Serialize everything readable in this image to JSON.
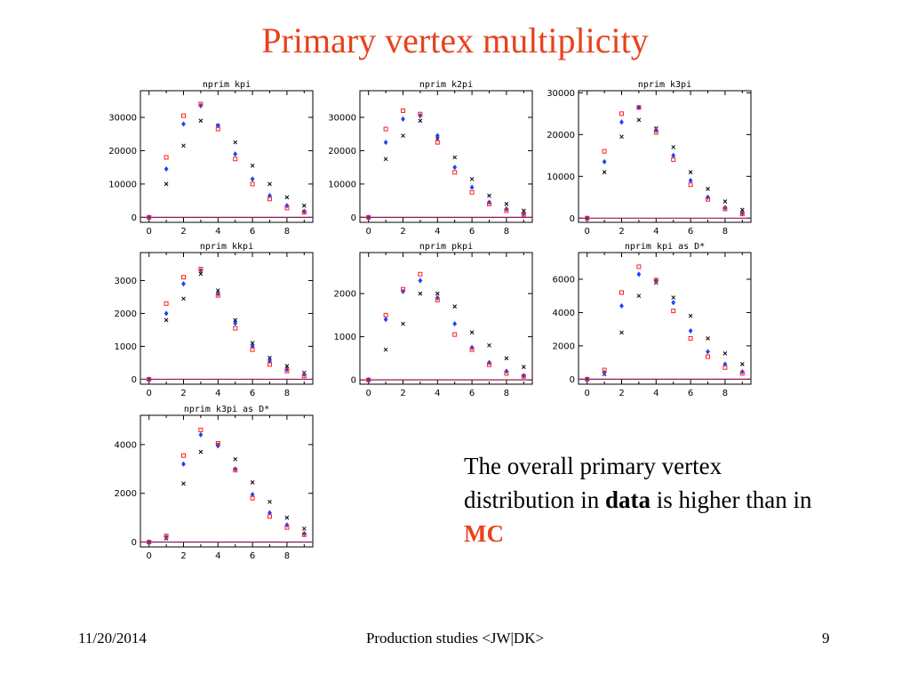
{
  "slide": {
    "title": "Primary vertex multiplicity",
    "note": {
      "part1": "The overall primary vertex distribution in ",
      "bold": "data",
      "part2": " is higher than in ",
      "mc": "MC"
    },
    "footer": {
      "date": "11/20/2014",
      "center": "Production studies <JW|DK>",
      "page": "9"
    }
  },
  "colors": {
    "title": "#e8421c",
    "zero_line": "#8b1a5a",
    "black_series": "#000000",
    "blue_series": "#1f3fff",
    "red_series": "#ff2020"
  },
  "chart_data": [
    {
      "type": "scatter",
      "title": "nprim kpi",
      "xlim": [
        -0.5,
        9.5
      ],
      "ylim": [
        -1500,
        38000
      ],
      "xticks": [
        0,
        2,
        4,
        6,
        8
      ],
      "yticks": [
        0,
        10000,
        20000,
        30000
      ],
      "x": [
        0,
        1,
        2,
        3,
        4,
        5,
        6,
        7,
        8,
        9
      ],
      "series": [
        {
          "marker": "x",
          "color": "black",
          "values": [
            0,
            10000,
            21500,
            29000,
            27500,
            22500,
            15500,
            10000,
            6000,
            3500
          ]
        },
        {
          "marker": "diamond",
          "color": "blue",
          "values": [
            0,
            14500,
            28000,
            33500,
            27500,
            19000,
            11500,
            6500,
            3500,
            1800
          ]
        },
        {
          "marker": "square",
          "color": "red",
          "values": [
            0,
            18000,
            30500,
            34000,
            26500,
            17500,
            10000,
            5500,
            2800,
            1500
          ]
        }
      ]
    },
    {
      "type": "scatter",
      "title": "nprim k2pi",
      "xlim": [
        -0.5,
        9.5
      ],
      "ylim": [
        -1500,
        38000
      ],
      "xticks": [
        0,
        2,
        4,
        6,
        8
      ],
      "yticks": [
        0,
        10000,
        20000,
        30000
      ],
      "x": [
        0,
        1,
        2,
        3,
        4,
        5,
        6,
        7,
        8,
        9
      ],
      "series": [
        {
          "marker": "x",
          "color": "black",
          "values": [
            0,
            17500,
            24500,
            29000,
            23500,
            18000,
            11500,
            6500,
            4000,
            2000
          ]
        },
        {
          "marker": "diamond",
          "color": "blue",
          "values": [
            0,
            22500,
            29500,
            30500,
            24500,
            15000,
            9000,
            4500,
            2500,
            1200
          ]
        },
        {
          "marker": "square",
          "color": "red",
          "values": [
            0,
            26500,
            32000,
            31000,
            22500,
            13500,
            7500,
            4000,
            2000,
            900
          ]
        }
      ]
    },
    {
      "type": "scatter",
      "title": "nprim k3pi",
      "xlim": [
        -0.5,
        9.5
      ],
      "ylim": [
        -1000,
        30500
      ],
      "xticks": [
        0,
        2,
        4,
        6,
        8
      ],
      "yticks": [
        0,
        10000,
        20000,
        30000
      ],
      "x": [
        0,
        1,
        2,
        3,
        4,
        5,
        6,
        7,
        8,
        9
      ],
      "series": [
        {
          "marker": "x",
          "color": "black",
          "values": [
            0,
            11000,
            19500,
            23500,
            21500,
            17000,
            11000,
            7000,
            4000,
            2000
          ]
        },
        {
          "marker": "diamond",
          "color": "blue",
          "values": [
            0,
            13500,
            23000,
            26500,
            21000,
            15000,
            9000,
            5000,
            2500,
            1200
          ]
        },
        {
          "marker": "square",
          "color": "red",
          "values": [
            0,
            16000,
            25000,
            26500,
            20500,
            14000,
            8000,
            4500,
            2200,
            1000
          ]
        }
      ]
    },
    {
      "type": "scatter",
      "title": "nprim kkpi",
      "xlim": [
        -0.5,
        9.5
      ],
      "ylim": [
        -150,
        3850
      ],
      "xticks": [
        0,
        2,
        4,
        6,
        8
      ],
      "yticks": [
        0,
        1000,
        2000,
        3000
      ],
      "x": [
        0,
        1,
        2,
        3,
        4,
        5,
        6,
        7,
        8,
        9
      ],
      "series": [
        {
          "marker": "x",
          "color": "black",
          "values": [
            0,
            1800,
            2450,
            3200,
            2700,
            1800,
            1100,
            650,
            400,
            200
          ]
        },
        {
          "marker": "diamond",
          "color": "blue",
          "values": [
            0,
            2000,
            2900,
            3300,
            2600,
            1700,
            1000,
            550,
            300,
            150
          ]
        },
        {
          "marker": "square",
          "color": "red",
          "values": [
            0,
            2300,
            3100,
            3350,
            2550,
            1550,
            900,
            450,
            250,
            100
          ]
        }
      ]
    },
    {
      "type": "scatter",
      "title": "nprim pkpi",
      "xlim": [
        -0.5,
        9.5
      ],
      "ylim": [
        -100,
        2950
      ],
      "xticks": [
        0,
        2,
        4,
        6,
        8
      ],
      "yticks": [
        0,
        1000,
        2000
      ],
      "x": [
        0,
        1,
        2,
        3,
        4,
        5,
        6,
        7,
        8,
        9
      ],
      "series": [
        {
          "marker": "x",
          "color": "black",
          "values": [
            0,
            700,
            1300,
            2000,
            2000,
            1700,
            1100,
            800,
            500,
            300
          ]
        },
        {
          "marker": "diamond",
          "color": "blue",
          "values": [
            0,
            1400,
            2050,
            2300,
            1900,
            1300,
            750,
            400,
            200,
            100
          ]
        },
        {
          "marker": "square",
          "color": "red",
          "values": [
            0,
            1500,
            2100,
            2450,
            1850,
            1050,
            700,
            350,
            150,
            80
          ]
        }
      ]
    },
    {
      "type": "scatter",
      "title": "nprim kpi as D*",
      "xlim": [
        -0.5,
        9.5
      ],
      "ylim": [
        -300,
        7600
      ],
      "xticks": [
        0,
        2,
        4,
        6,
        8
      ],
      "yticks": [
        0,
        2000,
        4000,
        6000
      ],
      "x": [
        0,
        1,
        2,
        3,
        4,
        5,
        6,
        7,
        8,
        9
      ],
      "series": [
        {
          "marker": "x",
          "color": "black",
          "values": [
            0,
            300,
            2800,
            5000,
            5800,
            4900,
            3800,
            2450,
            1550,
            900
          ]
        },
        {
          "marker": "diamond",
          "color": "blue",
          "values": [
            0,
            400,
            4400,
            6300,
            5900,
            4600,
            2900,
            1650,
            900,
            450
          ]
        },
        {
          "marker": "square",
          "color": "red",
          "values": [
            0,
            550,
            5200,
            6750,
            5950,
            4100,
            2450,
            1350,
            700,
            350
          ]
        }
      ]
    },
    {
      "type": "scatter",
      "title": "nprim k3pi as D*",
      "xlim": [
        -0.5,
        9.5
      ],
      "ylim": [
        -200,
        5200
      ],
      "xticks": [
        0,
        2,
        4,
        6,
        8
      ],
      "yticks": [
        0,
        2000,
        4000
      ],
      "x": [
        0,
        1,
        2,
        3,
        4,
        5,
        6,
        7,
        8,
        9
      ],
      "series": [
        {
          "marker": "x",
          "color": "black",
          "values": [
            0,
            150,
            2400,
            3700,
            4000,
            3400,
            2450,
            1650,
            1000,
            550
          ]
        },
        {
          "marker": "diamond",
          "color": "blue",
          "values": [
            0,
            200,
            3200,
            4400,
            3950,
            3000,
            1950,
            1200,
            700,
            350
          ]
        },
        {
          "marker": "square",
          "color": "red",
          "values": [
            0,
            250,
            3550,
            4600,
            4050,
            2950,
            1800,
            1050,
            600,
            300
          ]
        }
      ]
    }
  ]
}
